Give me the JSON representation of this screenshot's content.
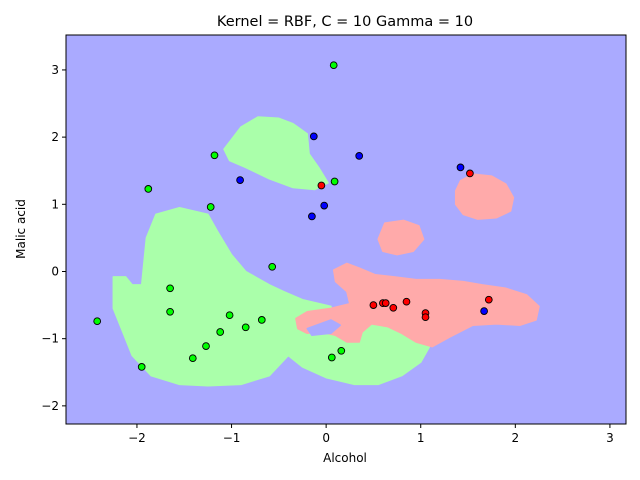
{
  "chart_data": {
    "type": "scatter",
    "title": "Kernel = RBF, C = 10 Gamma = 10",
    "xlabel": "Alcohol",
    "ylabel": "Malic acid",
    "xlim": [
      -2.75,
      3.17
    ],
    "ylim": [
      -2.27,
      3.52
    ],
    "xticks": [
      -2,
      -1,
      0,
      1,
      2,
      3
    ],
    "yticks": [
      -2,
      -1,
      0,
      1,
      2,
      3
    ],
    "grid": false,
    "colors": {
      "background_region": "#aaaaff",
      "green_region": "#aaffaa",
      "red_region": "#ffaaaa",
      "green_points": "#00ff00",
      "red_points": "#ff0000",
      "blue_points": "#0000ff",
      "point_edge": "#000000"
    },
    "decision_regions": {
      "green": [
        [
          [
            -1.08,
            1.82
          ],
          [
            -0.9,
            2.15
          ],
          [
            -0.72,
            2.3
          ],
          [
            -0.5,
            2.28
          ],
          [
            -0.35,
            2.2
          ],
          [
            -0.2,
            2.05
          ],
          [
            -0.18,
            1.75
          ],
          [
            -0.08,
            1.55
          ],
          [
            0.02,
            1.32
          ],
          [
            -0.12,
            1.22
          ],
          [
            -0.35,
            1.25
          ],
          [
            -0.6,
            1.38
          ],
          [
            -0.85,
            1.55
          ],
          [
            -1.02,
            1.65
          ]
        ],
        [
          [
            -2.25,
            -0.08
          ],
          [
            -2.12,
            -0.08
          ],
          [
            -2.05,
            -0.2
          ],
          [
            -1.95,
            -0.2
          ],
          [
            -1.9,
            0.5
          ],
          [
            -1.8,
            0.85
          ],
          [
            -1.55,
            0.95
          ],
          [
            -1.25,
            0.85
          ],
          [
            -1.15,
            0.6
          ],
          [
            -1.0,
            0.25
          ],
          [
            -0.85,
            0.0
          ],
          [
            -0.6,
            -0.2
          ],
          [
            -0.45,
            -0.3
          ],
          [
            -0.25,
            -0.42
          ],
          [
            0.05,
            -0.52
          ],
          [
            0.08,
            -0.68
          ],
          [
            0.12,
            -0.85
          ],
          [
            0.3,
            -0.82
          ],
          [
            0.45,
            -0.7
          ],
          [
            0.65,
            -0.62
          ],
          [
            0.9,
            -0.62
          ],
          [
            1.12,
            -0.68
          ],
          [
            1.12,
            -1.05
          ],
          [
            1.0,
            -1.35
          ],
          [
            0.8,
            -1.55
          ],
          [
            0.55,
            -1.68
          ],
          [
            0.3,
            -1.68
          ],
          [
            0.0,
            -1.58
          ],
          [
            -0.25,
            -1.42
          ],
          [
            -0.4,
            -1.25
          ],
          [
            -0.6,
            -1.55
          ],
          [
            -0.9,
            -1.68
          ],
          [
            -1.25,
            -1.7
          ],
          [
            -1.55,
            -1.68
          ],
          [
            -1.85,
            -1.55
          ],
          [
            -2.05,
            -1.25
          ],
          [
            -2.15,
            -0.9
          ],
          [
            -2.25,
            -0.55
          ]
        ]
      ],
      "red": [
        [
          [
            1.42,
            1.35
          ],
          [
            1.55,
            1.45
          ],
          [
            1.75,
            1.42
          ],
          [
            1.9,
            1.3
          ],
          [
            1.98,
            1.1
          ],
          [
            1.95,
            0.9
          ],
          [
            1.8,
            0.8
          ],
          [
            1.6,
            0.78
          ],
          [
            1.45,
            0.85
          ],
          [
            1.37,
            1.0
          ],
          [
            1.37,
            1.2
          ]
        ],
        [
          [
            0.62,
            0.72
          ],
          [
            0.82,
            0.76
          ],
          [
            0.98,
            0.68
          ],
          [
            1.03,
            0.48
          ],
          [
            0.92,
            0.3
          ],
          [
            0.75,
            0.25
          ],
          [
            0.6,
            0.3
          ],
          [
            0.55,
            0.48
          ]
        ],
        [
          [
            0.08,
            0.02
          ],
          [
            0.22,
            0.12
          ],
          [
            0.35,
            0.05
          ],
          [
            0.52,
            -0.05
          ],
          [
            0.72,
            -0.08
          ],
          [
            0.95,
            -0.12
          ],
          [
            1.2,
            -0.12
          ],
          [
            1.45,
            -0.15
          ],
          [
            1.65,
            -0.2
          ],
          [
            1.9,
            -0.25
          ],
          [
            2.12,
            -0.35
          ],
          [
            2.25,
            -0.52
          ],
          [
            2.22,
            -0.72
          ],
          [
            2.05,
            -0.8
          ],
          [
            1.8,
            -0.78
          ],
          [
            1.55,
            -0.8
          ],
          [
            1.3,
            -0.98
          ],
          [
            1.12,
            -1.12
          ],
          [
            0.95,
            -1.05
          ],
          [
            0.8,
            -0.92
          ],
          [
            0.65,
            -0.82
          ],
          [
            0.48,
            -0.78
          ],
          [
            0.38,
            -0.9
          ],
          [
            0.35,
            -1.05
          ],
          [
            0.22,
            -1.05
          ],
          [
            0.1,
            -0.95
          ],
          [
            -0.05,
            -0.9
          ],
          [
            -0.2,
            -0.92
          ],
          [
            -0.3,
            -0.85
          ],
          [
            -0.32,
            -0.7
          ],
          [
            -0.2,
            -0.6
          ],
          [
            0.05,
            -0.55
          ],
          [
            0.25,
            -0.48
          ],
          [
            0.22,
            -0.3
          ],
          [
            0.1,
            -0.15
          ]
        ]
      ],
      "blue_hole": [
        [
          [
            -0.2,
            -0.85
          ],
          [
            0.05,
            -0.72
          ],
          [
            0.15,
            -0.8
          ],
          [
            0.05,
            -0.92
          ],
          [
            -0.15,
            -0.95
          ]
        ]
      ]
    },
    "series": [
      {
        "color": "green",
        "points": [
          [
            0.08,
            3.07
          ],
          [
            -1.18,
            1.73
          ],
          [
            0.09,
            1.34
          ],
          [
            -1.88,
            1.23
          ],
          [
            -1.22,
            0.96
          ],
          [
            -0.57,
            0.07
          ],
          [
            -1.65,
            -0.25
          ],
          [
            -2.42,
            -0.74
          ],
          [
            -1.65,
            -0.6
          ],
          [
            -1.02,
            -0.65
          ],
          [
            -0.68,
            -0.72
          ],
          [
            -1.12,
            -0.9
          ],
          [
            -0.85,
            -0.83
          ],
          [
            -1.27,
            -1.11
          ],
          [
            -1.41,
            -1.29
          ],
          [
            -1.95,
            -1.42
          ],
          [
            0.16,
            -1.18
          ],
          [
            0.06,
            -1.28
          ]
        ]
      },
      {
        "color": "red",
        "points": [
          [
            -0.05,
            1.28
          ],
          [
            1.52,
            1.46
          ],
          [
            0.5,
            -0.5
          ],
          [
            0.6,
            -0.47
          ],
          [
            0.63,
            -0.47
          ],
          [
            0.71,
            -0.54
          ],
          [
            0.85,
            -0.45
          ],
          [
            1.05,
            -0.62
          ],
          [
            1.05,
            -0.68
          ],
          [
            1.72,
            -0.42
          ]
        ]
      },
      {
        "color": "blue",
        "points": [
          [
            -0.13,
            2.01
          ],
          [
            0.35,
            1.72
          ],
          [
            -0.91,
            1.36
          ],
          [
            1.42,
            1.55
          ],
          [
            -0.02,
            0.98
          ],
          [
            -0.15,
            0.82
          ],
          [
            1.67,
            -0.59
          ]
        ]
      }
    ]
  }
}
